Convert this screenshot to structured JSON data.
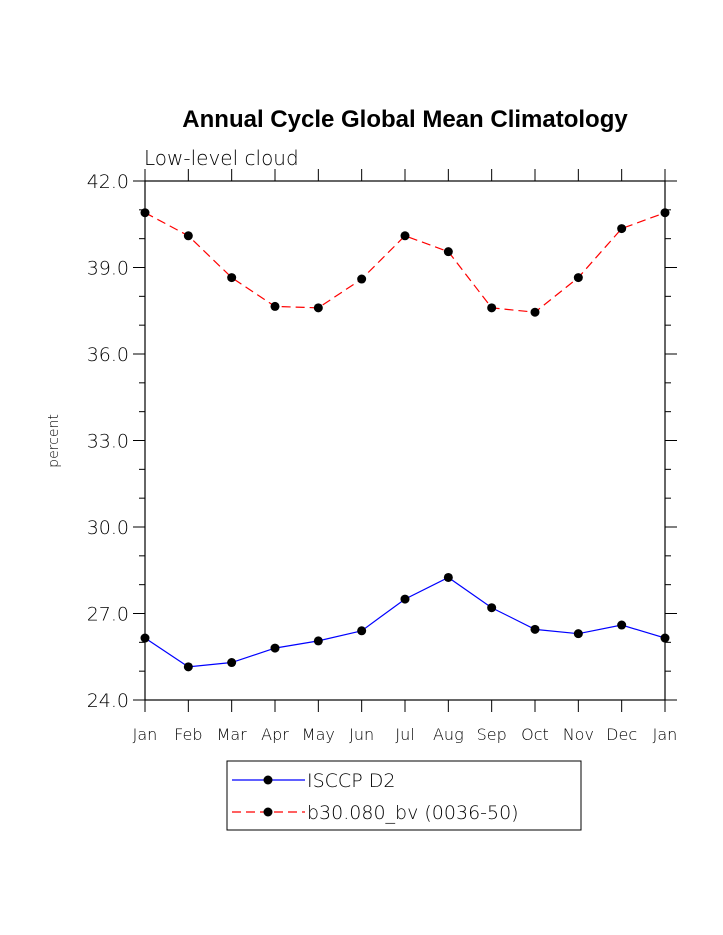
{
  "chart_data": {
    "type": "line",
    "title": "Annual Cycle Global Mean Climatology",
    "subtitle": "Low-level cloud",
    "xlabel": "",
    "ylabel": "percent",
    "categories": [
      "Jan",
      "Feb",
      "Mar",
      "Apr",
      "May",
      "Jun",
      "Jul",
      "Aug",
      "Sep",
      "Oct",
      "Nov",
      "Dec",
      "Jan"
    ],
    "ylim": [
      24.0,
      42.0
    ],
    "yticks": [
      24.0,
      27.0,
      30.0,
      33.0,
      36.0,
      39.0,
      42.0
    ],
    "ytick_labels": [
      "24.0",
      "27.0",
      "30.0",
      "33.0",
      "36.0",
      "39.0",
      "42.0"
    ],
    "grid": false,
    "legend_position": "bottom-center",
    "series": [
      {
        "name": "ISCCP D2",
        "color": "#0000ff",
        "dash": "solid",
        "marker": "filled-circle",
        "values": [
          26.15,
          25.15,
          25.3,
          25.8,
          26.05,
          26.4,
          27.5,
          28.25,
          27.2,
          26.45,
          26.3,
          26.6,
          26.15
        ]
      },
      {
        "name": "b30.080_bv (0036-50)",
        "color": "#ff0000",
        "dash": "dashed",
        "marker": "filled-circle",
        "values": [
          40.9,
          40.1,
          38.65,
          37.65,
          37.6,
          38.6,
          40.1,
          39.55,
          37.6,
          37.45,
          38.65,
          40.35,
          40.9
        ]
      }
    ]
  }
}
